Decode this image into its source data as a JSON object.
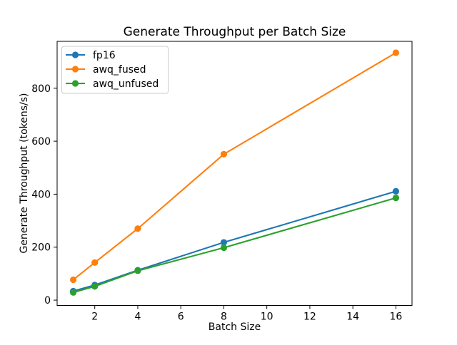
{
  "figure": {
    "background_color": "#ffffff",
    "spine_color": "#000000",
    "legend_border_color": "#cccccc"
  },
  "chart_data": {
    "type": "line",
    "title": "Generate Throughput per Batch Size",
    "xlabel": "Batch Size",
    "ylabel": "Generate Throughput (tokens/s)",
    "x": [
      1,
      2,
      4,
      8,
      16
    ],
    "series": [
      {
        "name": "fp16",
        "color": "#1f77b4",
        "values": [
          34,
          57,
          113,
          218,
          411
        ]
      },
      {
        "name": "awq_fused",
        "color": "#ff7f0e",
        "values": [
          77,
          142,
          270,
          551,
          934
        ]
      },
      {
        "name": "awq_unfused",
        "color": "#2ca02c",
        "values": [
          29,
          52,
          111,
          198,
          386
        ]
      }
    ],
    "marker": "o",
    "xticks": [
      2,
      4,
      6,
      8,
      10,
      12,
      14,
      16
    ],
    "yticks": [
      0,
      200,
      400,
      600,
      800
    ],
    "xlim": [
      0.25,
      16.75
    ],
    "ylim": [
      -20,
      977
    ],
    "grid": false,
    "legend_position": "upper left"
  }
}
